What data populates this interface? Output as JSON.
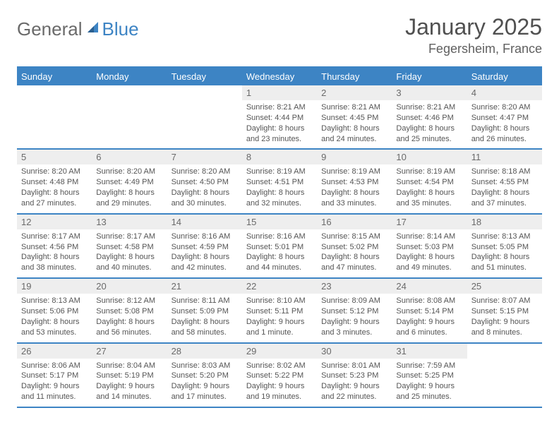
{
  "brand": {
    "part1": "General",
    "part2": "Blue"
  },
  "title": "January 2025",
  "location": "Fegersheim, France",
  "colors": {
    "accent": "#3d84c4",
    "header_bg": "#eeeeee",
    "text": "#555555",
    "background": "#ffffff"
  },
  "typography": {
    "title_fontsize": 32,
    "location_fontsize": 18,
    "dayheader_fontsize": 13,
    "body_fontsize": 11
  },
  "day_headers": [
    "Sunday",
    "Monday",
    "Tuesday",
    "Wednesday",
    "Thursday",
    "Friday",
    "Saturday"
  ],
  "weeks": [
    [
      {
        "num": "",
        "sunrise": "",
        "sunset": "",
        "daylight": ""
      },
      {
        "num": "",
        "sunrise": "",
        "sunset": "",
        "daylight": ""
      },
      {
        "num": "",
        "sunrise": "",
        "sunset": "",
        "daylight": ""
      },
      {
        "num": "1",
        "sunrise": "Sunrise: 8:21 AM",
        "sunset": "Sunset: 4:44 PM",
        "daylight": "Daylight: 8 hours and 23 minutes."
      },
      {
        "num": "2",
        "sunrise": "Sunrise: 8:21 AM",
        "sunset": "Sunset: 4:45 PM",
        "daylight": "Daylight: 8 hours and 24 minutes."
      },
      {
        "num": "3",
        "sunrise": "Sunrise: 8:21 AM",
        "sunset": "Sunset: 4:46 PM",
        "daylight": "Daylight: 8 hours and 25 minutes."
      },
      {
        "num": "4",
        "sunrise": "Sunrise: 8:20 AM",
        "sunset": "Sunset: 4:47 PM",
        "daylight": "Daylight: 8 hours and 26 minutes."
      }
    ],
    [
      {
        "num": "5",
        "sunrise": "Sunrise: 8:20 AM",
        "sunset": "Sunset: 4:48 PM",
        "daylight": "Daylight: 8 hours and 27 minutes."
      },
      {
        "num": "6",
        "sunrise": "Sunrise: 8:20 AM",
        "sunset": "Sunset: 4:49 PM",
        "daylight": "Daylight: 8 hours and 29 minutes."
      },
      {
        "num": "7",
        "sunrise": "Sunrise: 8:20 AM",
        "sunset": "Sunset: 4:50 PM",
        "daylight": "Daylight: 8 hours and 30 minutes."
      },
      {
        "num": "8",
        "sunrise": "Sunrise: 8:19 AM",
        "sunset": "Sunset: 4:51 PM",
        "daylight": "Daylight: 8 hours and 32 minutes."
      },
      {
        "num": "9",
        "sunrise": "Sunrise: 8:19 AM",
        "sunset": "Sunset: 4:53 PM",
        "daylight": "Daylight: 8 hours and 33 minutes."
      },
      {
        "num": "10",
        "sunrise": "Sunrise: 8:19 AM",
        "sunset": "Sunset: 4:54 PM",
        "daylight": "Daylight: 8 hours and 35 minutes."
      },
      {
        "num": "11",
        "sunrise": "Sunrise: 8:18 AM",
        "sunset": "Sunset: 4:55 PM",
        "daylight": "Daylight: 8 hours and 37 minutes."
      }
    ],
    [
      {
        "num": "12",
        "sunrise": "Sunrise: 8:17 AM",
        "sunset": "Sunset: 4:56 PM",
        "daylight": "Daylight: 8 hours and 38 minutes."
      },
      {
        "num": "13",
        "sunrise": "Sunrise: 8:17 AM",
        "sunset": "Sunset: 4:58 PM",
        "daylight": "Daylight: 8 hours and 40 minutes."
      },
      {
        "num": "14",
        "sunrise": "Sunrise: 8:16 AM",
        "sunset": "Sunset: 4:59 PM",
        "daylight": "Daylight: 8 hours and 42 minutes."
      },
      {
        "num": "15",
        "sunrise": "Sunrise: 8:16 AM",
        "sunset": "Sunset: 5:01 PM",
        "daylight": "Daylight: 8 hours and 44 minutes."
      },
      {
        "num": "16",
        "sunrise": "Sunrise: 8:15 AM",
        "sunset": "Sunset: 5:02 PM",
        "daylight": "Daylight: 8 hours and 47 minutes."
      },
      {
        "num": "17",
        "sunrise": "Sunrise: 8:14 AM",
        "sunset": "Sunset: 5:03 PM",
        "daylight": "Daylight: 8 hours and 49 minutes."
      },
      {
        "num": "18",
        "sunrise": "Sunrise: 8:13 AM",
        "sunset": "Sunset: 5:05 PM",
        "daylight": "Daylight: 8 hours and 51 minutes."
      }
    ],
    [
      {
        "num": "19",
        "sunrise": "Sunrise: 8:13 AM",
        "sunset": "Sunset: 5:06 PM",
        "daylight": "Daylight: 8 hours and 53 minutes."
      },
      {
        "num": "20",
        "sunrise": "Sunrise: 8:12 AM",
        "sunset": "Sunset: 5:08 PM",
        "daylight": "Daylight: 8 hours and 56 minutes."
      },
      {
        "num": "21",
        "sunrise": "Sunrise: 8:11 AM",
        "sunset": "Sunset: 5:09 PM",
        "daylight": "Daylight: 8 hours and 58 minutes."
      },
      {
        "num": "22",
        "sunrise": "Sunrise: 8:10 AM",
        "sunset": "Sunset: 5:11 PM",
        "daylight": "Daylight: 9 hours and 1 minute."
      },
      {
        "num": "23",
        "sunrise": "Sunrise: 8:09 AM",
        "sunset": "Sunset: 5:12 PM",
        "daylight": "Daylight: 9 hours and 3 minutes."
      },
      {
        "num": "24",
        "sunrise": "Sunrise: 8:08 AM",
        "sunset": "Sunset: 5:14 PM",
        "daylight": "Daylight: 9 hours and 6 minutes."
      },
      {
        "num": "25",
        "sunrise": "Sunrise: 8:07 AM",
        "sunset": "Sunset: 5:15 PM",
        "daylight": "Daylight: 9 hours and 8 minutes."
      }
    ],
    [
      {
        "num": "26",
        "sunrise": "Sunrise: 8:06 AM",
        "sunset": "Sunset: 5:17 PM",
        "daylight": "Daylight: 9 hours and 11 minutes."
      },
      {
        "num": "27",
        "sunrise": "Sunrise: 8:04 AM",
        "sunset": "Sunset: 5:19 PM",
        "daylight": "Daylight: 9 hours and 14 minutes."
      },
      {
        "num": "28",
        "sunrise": "Sunrise: 8:03 AM",
        "sunset": "Sunset: 5:20 PM",
        "daylight": "Daylight: 9 hours and 17 minutes."
      },
      {
        "num": "29",
        "sunrise": "Sunrise: 8:02 AM",
        "sunset": "Sunset: 5:22 PM",
        "daylight": "Daylight: 9 hours and 19 minutes."
      },
      {
        "num": "30",
        "sunrise": "Sunrise: 8:01 AM",
        "sunset": "Sunset: 5:23 PM",
        "daylight": "Daylight: 9 hours and 22 minutes."
      },
      {
        "num": "31",
        "sunrise": "Sunrise: 7:59 AM",
        "sunset": "Sunset: 5:25 PM",
        "daylight": "Daylight: 9 hours and 25 minutes."
      },
      {
        "num": "",
        "sunrise": "",
        "sunset": "",
        "daylight": ""
      }
    ]
  ]
}
